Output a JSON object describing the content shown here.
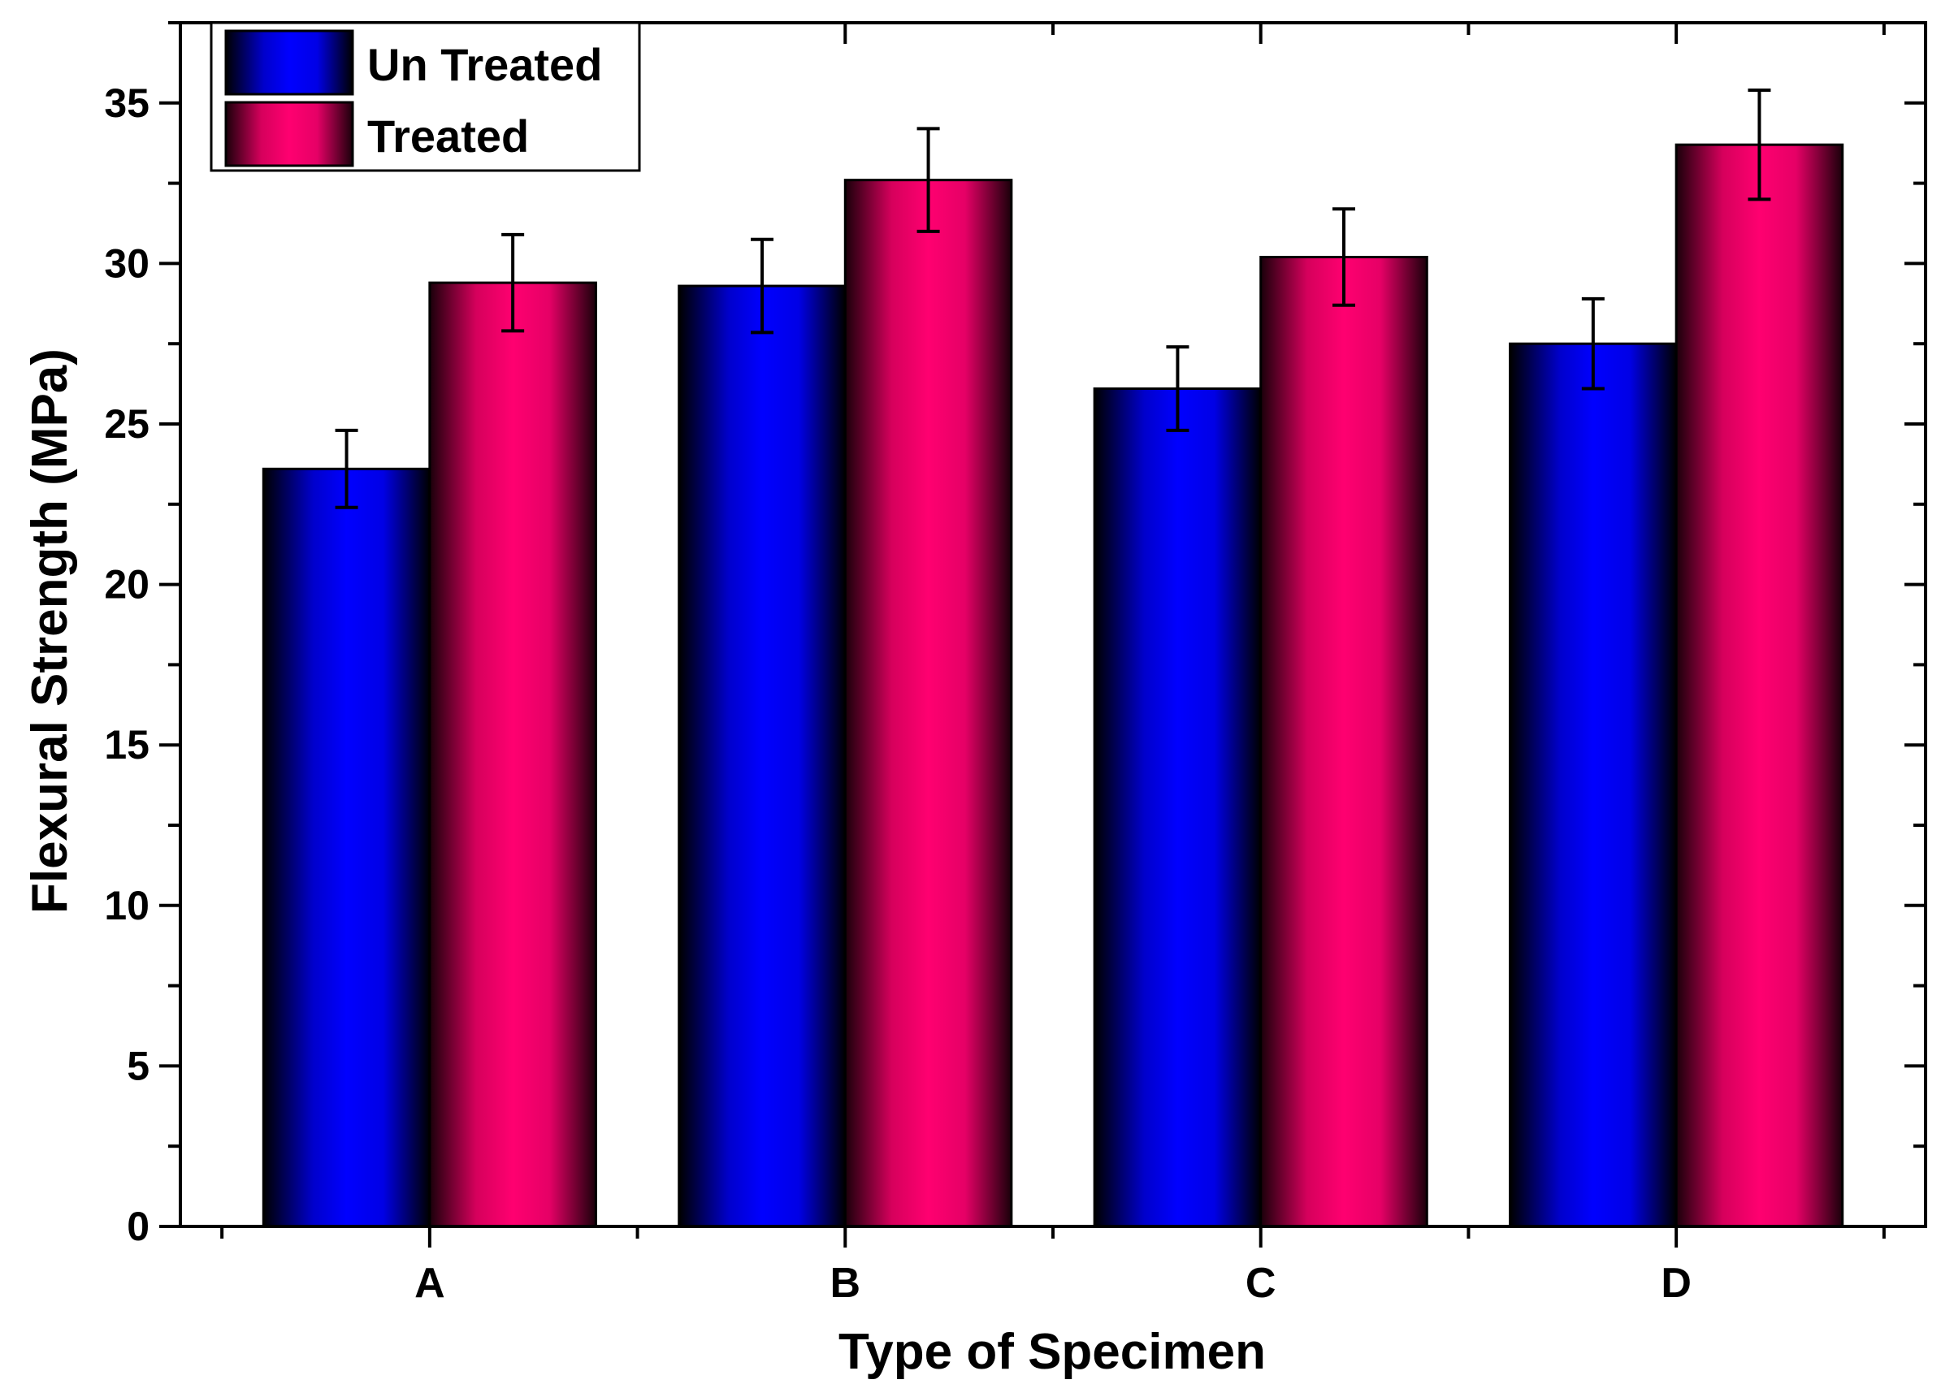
{
  "chart_data": {
    "type": "bar",
    "title": "",
    "xlabel": "Type of Specimen",
    "ylabel": "Flexural Strength (MPa)",
    "categories": [
      "A",
      "B",
      "C",
      "D"
    ],
    "ylim": [
      0,
      37.5
    ],
    "yticks": [
      0,
      5,
      10,
      15,
      20,
      25,
      30,
      35
    ],
    "ytick_labels": [
      "0",
      "5",
      "10",
      "15",
      "20",
      "25",
      "30",
      "35"
    ],
    "grid": false,
    "legend_position": "top-left",
    "series": [
      {
        "name": "Un Treated",
        "color": "#0000ff",
        "values": [
          23.6,
          29.3,
          26.1,
          27.5
        ],
        "errors": [
          1.2,
          1.45,
          1.3,
          1.4
        ]
      },
      {
        "name": "Treated",
        "color": "#ff0070",
        "values": [
          29.4,
          32.6,
          30.2,
          33.7
        ],
        "errors": [
          1.5,
          1.6,
          1.5,
          1.7
        ]
      }
    ]
  }
}
